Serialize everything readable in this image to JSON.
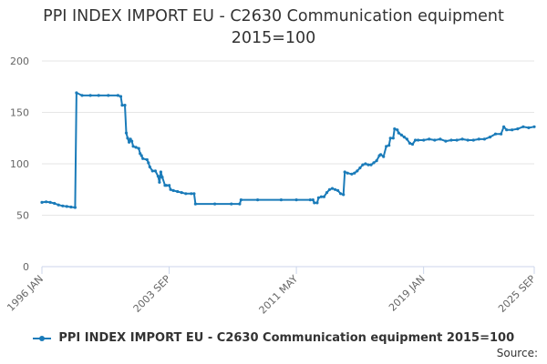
{
  "chart_data": {
    "type": "line",
    "title_lines": [
      "PPI INDEX IMPORT EU - C2630 Communication equipment",
      "2015=100"
    ],
    "xlabel": "",
    "ylabel": "",
    "ylim": [
      0,
      200
    ],
    "yticks": [
      0,
      50,
      100,
      150,
      200
    ],
    "xlim": [
      "1996-01",
      "2025-09"
    ],
    "xticks": [
      "1996 JAN",
      "2003 SEP",
      "2011 MAY",
      "2019 JAN",
      "2025 SEP"
    ],
    "grid": true,
    "legend_position": "bottom",
    "series": [
      {
        "name": "PPI INDEX IMPORT EU - C2630 Communication equipment 2015=100",
        "color": "#1A7BB9",
        "points": [
          [
            "1996-01",
            62.5
          ],
          [
            "1996-04",
            63
          ],
          [
            "1996-07",
            62.5
          ],
          [
            "1996-10",
            61.5
          ],
          [
            "1997-01",
            60
          ],
          [
            "1997-04",
            59
          ],
          [
            "1997-07",
            58.5
          ],
          [
            "1997-10",
            58
          ],
          [
            "1998-01",
            57.5
          ],
          [
            "1998-02",
            169
          ],
          [
            "1998-06",
            166.5
          ],
          [
            "1998-12",
            166.5
          ],
          [
            "1999-06",
            166.5
          ],
          [
            "2000-01",
            166.5
          ],
          [
            "2000-08",
            166.5
          ],
          [
            "2000-10",
            165.5
          ],
          [
            "2000-11",
            157
          ],
          [
            "2001-01",
            157
          ],
          [
            "2001-02",
            130
          ],
          [
            "2001-03",
            125
          ],
          [
            "2001-04",
            121
          ],
          [
            "2001-05",
            124
          ],
          [
            "2001-06",
            122
          ],
          [
            "2001-07",
            117
          ],
          [
            "2001-09",
            116
          ],
          [
            "2001-11",
            115
          ],
          [
            "2001-12",
            110
          ],
          [
            "2002-01",
            108
          ],
          [
            "2002-02",
            105
          ],
          [
            "2002-05",
            104
          ],
          [
            "2002-06",
            101
          ],
          [
            "2002-07",
            97
          ],
          [
            "2002-09",
            93
          ],
          [
            "2002-11",
            93
          ],
          [
            "2003-01",
            88
          ],
          [
            "2003-02",
            82
          ],
          [
            "2003-03",
            92
          ],
          [
            "2003-04",
            87
          ],
          [
            "2003-06",
            79
          ],
          [
            "2003-07",
            79
          ],
          [
            "2003-09",
            79
          ],
          [
            "2003-10",
            75
          ],
          [
            "2003-12",
            74
          ],
          [
            "2004-03",
            73
          ],
          [
            "2004-06",
            72
          ],
          [
            "2004-09",
            71
          ],
          [
            "2005-01",
            71
          ],
          [
            "2005-03",
            71
          ],
          [
            "2005-04",
            61
          ],
          [
            "2006-06",
            61
          ],
          [
            "2007-06",
            61
          ],
          [
            "2007-12",
            61
          ],
          [
            "2008-01",
            65
          ],
          [
            "2009-01",
            65
          ],
          [
            "2010-06",
            65
          ],
          [
            "2011-05",
            65
          ],
          [
            "2012-03",
            65
          ],
          [
            "2012-05",
            65
          ],
          [
            "2012-06",
            62
          ],
          [
            "2012-08",
            62
          ],
          [
            "2012-09",
            67
          ],
          [
            "2012-11",
            68
          ],
          [
            "2013-01",
            68
          ],
          [
            "2013-03",
            72
          ],
          [
            "2013-05",
            75
          ],
          [
            "2013-07",
            76
          ],
          [
            "2013-09",
            75
          ],
          [
            "2013-11",
            74
          ],
          [
            "2014-01",
            71
          ],
          [
            "2014-03",
            70
          ],
          [
            "2014-04",
            92
          ],
          [
            "2014-06",
            91
          ],
          [
            "2014-09",
            90
          ],
          [
            "2014-11",
            91
          ],
          [
            "2015-01",
            93
          ],
          [
            "2015-03",
            96
          ],
          [
            "2015-05",
            99
          ],
          [
            "2015-07",
            100
          ],
          [
            "2015-09",
            99
          ],
          [
            "2015-11",
            99
          ],
          [
            "2016-01",
            101
          ],
          [
            "2016-03",
            103
          ],
          [
            "2016-05",
            108
          ],
          [
            "2016-06",
            109
          ],
          [
            "2016-08",
            107
          ],
          [
            "2016-10",
            117
          ],
          [
            "2016-12",
            118
          ],
          [
            "2017-01",
            125
          ],
          [
            "2017-03",
            125
          ],
          [
            "2017-04",
            134
          ],
          [
            "2017-06",
            133
          ],
          [
            "2017-07",
            130
          ],
          [
            "2017-09",
            128
          ],
          [
            "2017-11",
            126
          ],
          [
            "2018-01",
            124
          ],
          [
            "2018-03",
            120
          ],
          [
            "2018-05",
            119
          ],
          [
            "2018-07",
            123
          ],
          [
            "2018-09",
            123
          ],
          [
            "2019-01",
            123
          ],
          [
            "2019-05",
            124
          ],
          [
            "2019-09",
            123
          ],
          [
            "2020-01",
            124
          ],
          [
            "2020-05",
            122
          ],
          [
            "2020-09",
            123
          ],
          [
            "2021-01",
            123
          ],
          [
            "2021-05",
            124
          ],
          [
            "2021-09",
            123
          ],
          [
            "2022-01",
            123
          ],
          [
            "2022-05",
            124
          ],
          [
            "2022-09",
            124
          ],
          [
            "2023-01",
            126
          ],
          [
            "2023-05",
            129
          ],
          [
            "2023-09",
            129
          ],
          [
            "2023-11",
            136
          ],
          [
            "2024-01",
            133
          ],
          [
            "2024-05",
            133
          ],
          [
            "2024-09",
            134
          ],
          [
            "2025-01",
            136
          ],
          [
            "2025-05",
            135
          ],
          [
            "2025-09",
            136
          ]
        ]
      }
    ]
  },
  "legend": {
    "label": "PPI INDEX IMPORT EU - C2630 Communication equipment 2015=100"
  },
  "source": {
    "label": "Source:"
  }
}
